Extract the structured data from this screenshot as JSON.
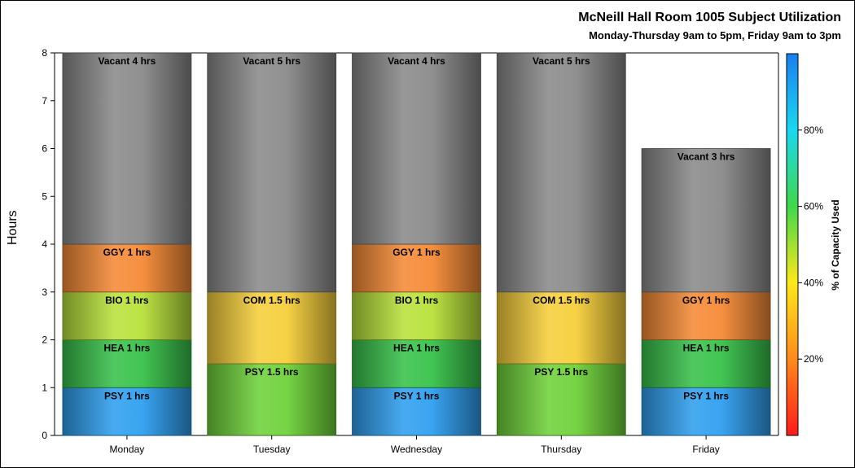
{
  "chart_data": {
    "type": "bar",
    "stacked": true,
    "title": "McNeill Hall Room 1005 Subject Utilization",
    "subtitle": "Monday-Thursday 9am to 5pm, Friday 9am to 3pm",
    "ylabel": "Hours",
    "xlabel": "",
    "ylim": [
      0,
      8
    ],
    "yticks": [
      0,
      1,
      2,
      3,
      4,
      5,
      6,
      7,
      8
    ],
    "categories": [
      "Monday",
      "Tuesday",
      "Wednesday",
      "Thursday",
      "Friday"
    ],
    "stacks": [
      {
        "day": "Monday",
        "segments": [
          {
            "subject": "PSY",
            "hours": 1,
            "label": "PSY 1 hrs",
            "color": "#2f9fef"
          },
          {
            "subject": "HEA",
            "hours": 1,
            "label": "HEA 1 hrs",
            "color": "#38c24a"
          },
          {
            "subject": "BIO",
            "hours": 1,
            "label": "BIO 1 hrs",
            "color": "#b8e23a"
          },
          {
            "subject": "GGY",
            "hours": 1,
            "label": "GGY 1 hrs",
            "color": "#f58a36"
          },
          {
            "subject": "Vacant",
            "hours": 4,
            "label": "Vacant 4 hrs",
            "color": "#8a8a8a"
          }
        ]
      },
      {
        "day": "Tuesday",
        "segments": [
          {
            "subject": "PSY",
            "hours": 1.5,
            "label": "PSY 1.5 hrs",
            "color": "#6fd23a"
          },
          {
            "subject": "COM",
            "hours": 1.5,
            "label": "COM 1.5 hrs",
            "color": "#f6cf3a"
          },
          {
            "subject": "Vacant",
            "hours": 5,
            "label": "Vacant 5 hrs",
            "color": "#8a8a8a"
          }
        ]
      },
      {
        "day": "Wednesday",
        "segments": [
          {
            "subject": "PSY",
            "hours": 1,
            "label": "PSY 1 hrs",
            "color": "#2f9fef"
          },
          {
            "subject": "HEA",
            "hours": 1,
            "label": "HEA 1 hrs",
            "color": "#38c24a"
          },
          {
            "subject": "BIO",
            "hours": 1,
            "label": "BIO 1 hrs",
            "color": "#b8e23a"
          },
          {
            "subject": "GGY",
            "hours": 1,
            "label": "GGY 1 hrs",
            "color": "#f58a36"
          },
          {
            "subject": "Vacant",
            "hours": 4,
            "label": "Vacant 4 hrs",
            "color": "#8a8a8a"
          }
        ]
      },
      {
        "day": "Thursday",
        "segments": [
          {
            "subject": "PSY",
            "hours": 1.5,
            "label": "PSY 1.5 hrs",
            "color": "#6fd23a"
          },
          {
            "subject": "COM",
            "hours": 1.5,
            "label": "COM 1.5 hrs",
            "color": "#f6cf3a"
          },
          {
            "subject": "Vacant",
            "hours": 5,
            "label": "Vacant 5 hrs",
            "color": "#8a8a8a"
          }
        ]
      },
      {
        "day": "Friday",
        "segments": [
          {
            "subject": "PSY",
            "hours": 1,
            "label": "PSY 1 hrs",
            "color": "#2f9fef"
          },
          {
            "subject": "HEA",
            "hours": 1,
            "label": "HEA 1 hrs",
            "color": "#38c24a"
          },
          {
            "subject": "GGY",
            "hours": 1,
            "label": "GGY 1 hrs",
            "color": "#f58a36"
          },
          {
            "subject": "Vacant",
            "hours": 3,
            "label": "Vacant 3 hrs",
            "color": "#8a8a8a"
          }
        ]
      }
    ],
    "colorbar": {
      "label": "% of Capacity Used",
      "range": [
        0,
        100
      ],
      "ticks": [
        20,
        40,
        60,
        80
      ],
      "tick_labels": [
        "20%",
        "40%",
        "60%",
        "80%"
      ],
      "colors": [
        "#ff1a1a",
        "#ff8a1a",
        "#ffe81a",
        "#3fd84a",
        "#1ad8f0",
        "#1a7ff0"
      ]
    }
  }
}
